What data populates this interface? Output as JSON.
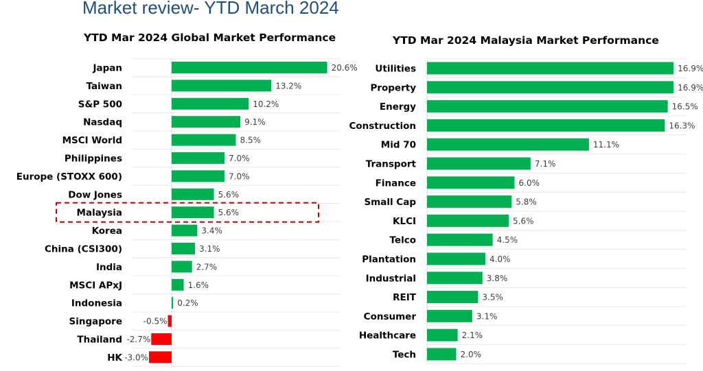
{
  "page_title": "Market review- YTD March 2024",
  "chart_data": [
    {
      "id": "global",
      "type": "bar",
      "orientation": "horizontal",
      "title": "YTD Mar 2024 Global Market Performance",
      "categories": [
        "Japan",
        "Taiwan",
        "S&P 500",
        "Nasdaq",
        "MSCI World",
        "Philippines",
        "Europe (STOXX 600)",
        "Dow Jones",
        "Malaysia",
        "Korea",
        "China (CSI300)",
        "India",
        "MSCI APxJ",
        "Indonesia",
        "Singapore",
        "Thailand",
        "HK"
      ],
      "values": [
        20.6,
        13.2,
        10.2,
        9.1,
        8.5,
        7.0,
        7.0,
        5.6,
        5.6,
        3.4,
        3.1,
        2.7,
        1.6,
        0.2,
        -0.5,
        -2.7,
        -3.0
      ],
      "value_labels": [
        "20.6%",
        "13.2%",
        "10.2%",
        "9.1%",
        "8.5%",
        "7.0%",
        "7.0%",
        "5.6%",
        "5.6%",
        "3.4%",
        "3.1%",
        "2.7%",
        "1.6%",
        "0.2%",
        "-0.5%",
        "-2.7%",
        "-3.0%"
      ],
      "highlight_category": "Malaysia",
      "colors": {
        "positive": "#00b050",
        "negative": "#ff0000",
        "highlight_border": "#c00000"
      }
    },
    {
      "id": "malaysia",
      "type": "bar",
      "orientation": "horizontal",
      "title": "YTD Mar 2024 Malaysia Market Performance",
      "categories": [
        "Utilities",
        "Property",
        "Energy",
        "Construction",
        "Mid 70",
        "Transport",
        "Finance",
        "Small Cap",
        "KLCI",
        "Telco",
        "Plantation",
        "Industrial",
        "REIT",
        "Consumer",
        "Healthcare",
        "Tech"
      ],
      "values": [
        16.9,
        16.9,
        16.5,
        16.3,
        11.1,
        7.1,
        6.0,
        5.8,
        5.6,
        4.5,
        4.0,
        3.8,
        3.5,
        3.1,
        2.1,
        2.0
      ],
      "value_labels": [
        "16.9%",
        "16.9%",
        "16.5%",
        "16.3%",
        "11.1%",
        "7.1%",
        "6.0%",
        "5.8%",
        "5.6%",
        "4.5%",
        "4.0%",
        "3.8%",
        "3.5%",
        "3.1%",
        "2.1%",
        "2.0%"
      ],
      "colors": {
        "positive": "#00b050"
      }
    }
  ]
}
